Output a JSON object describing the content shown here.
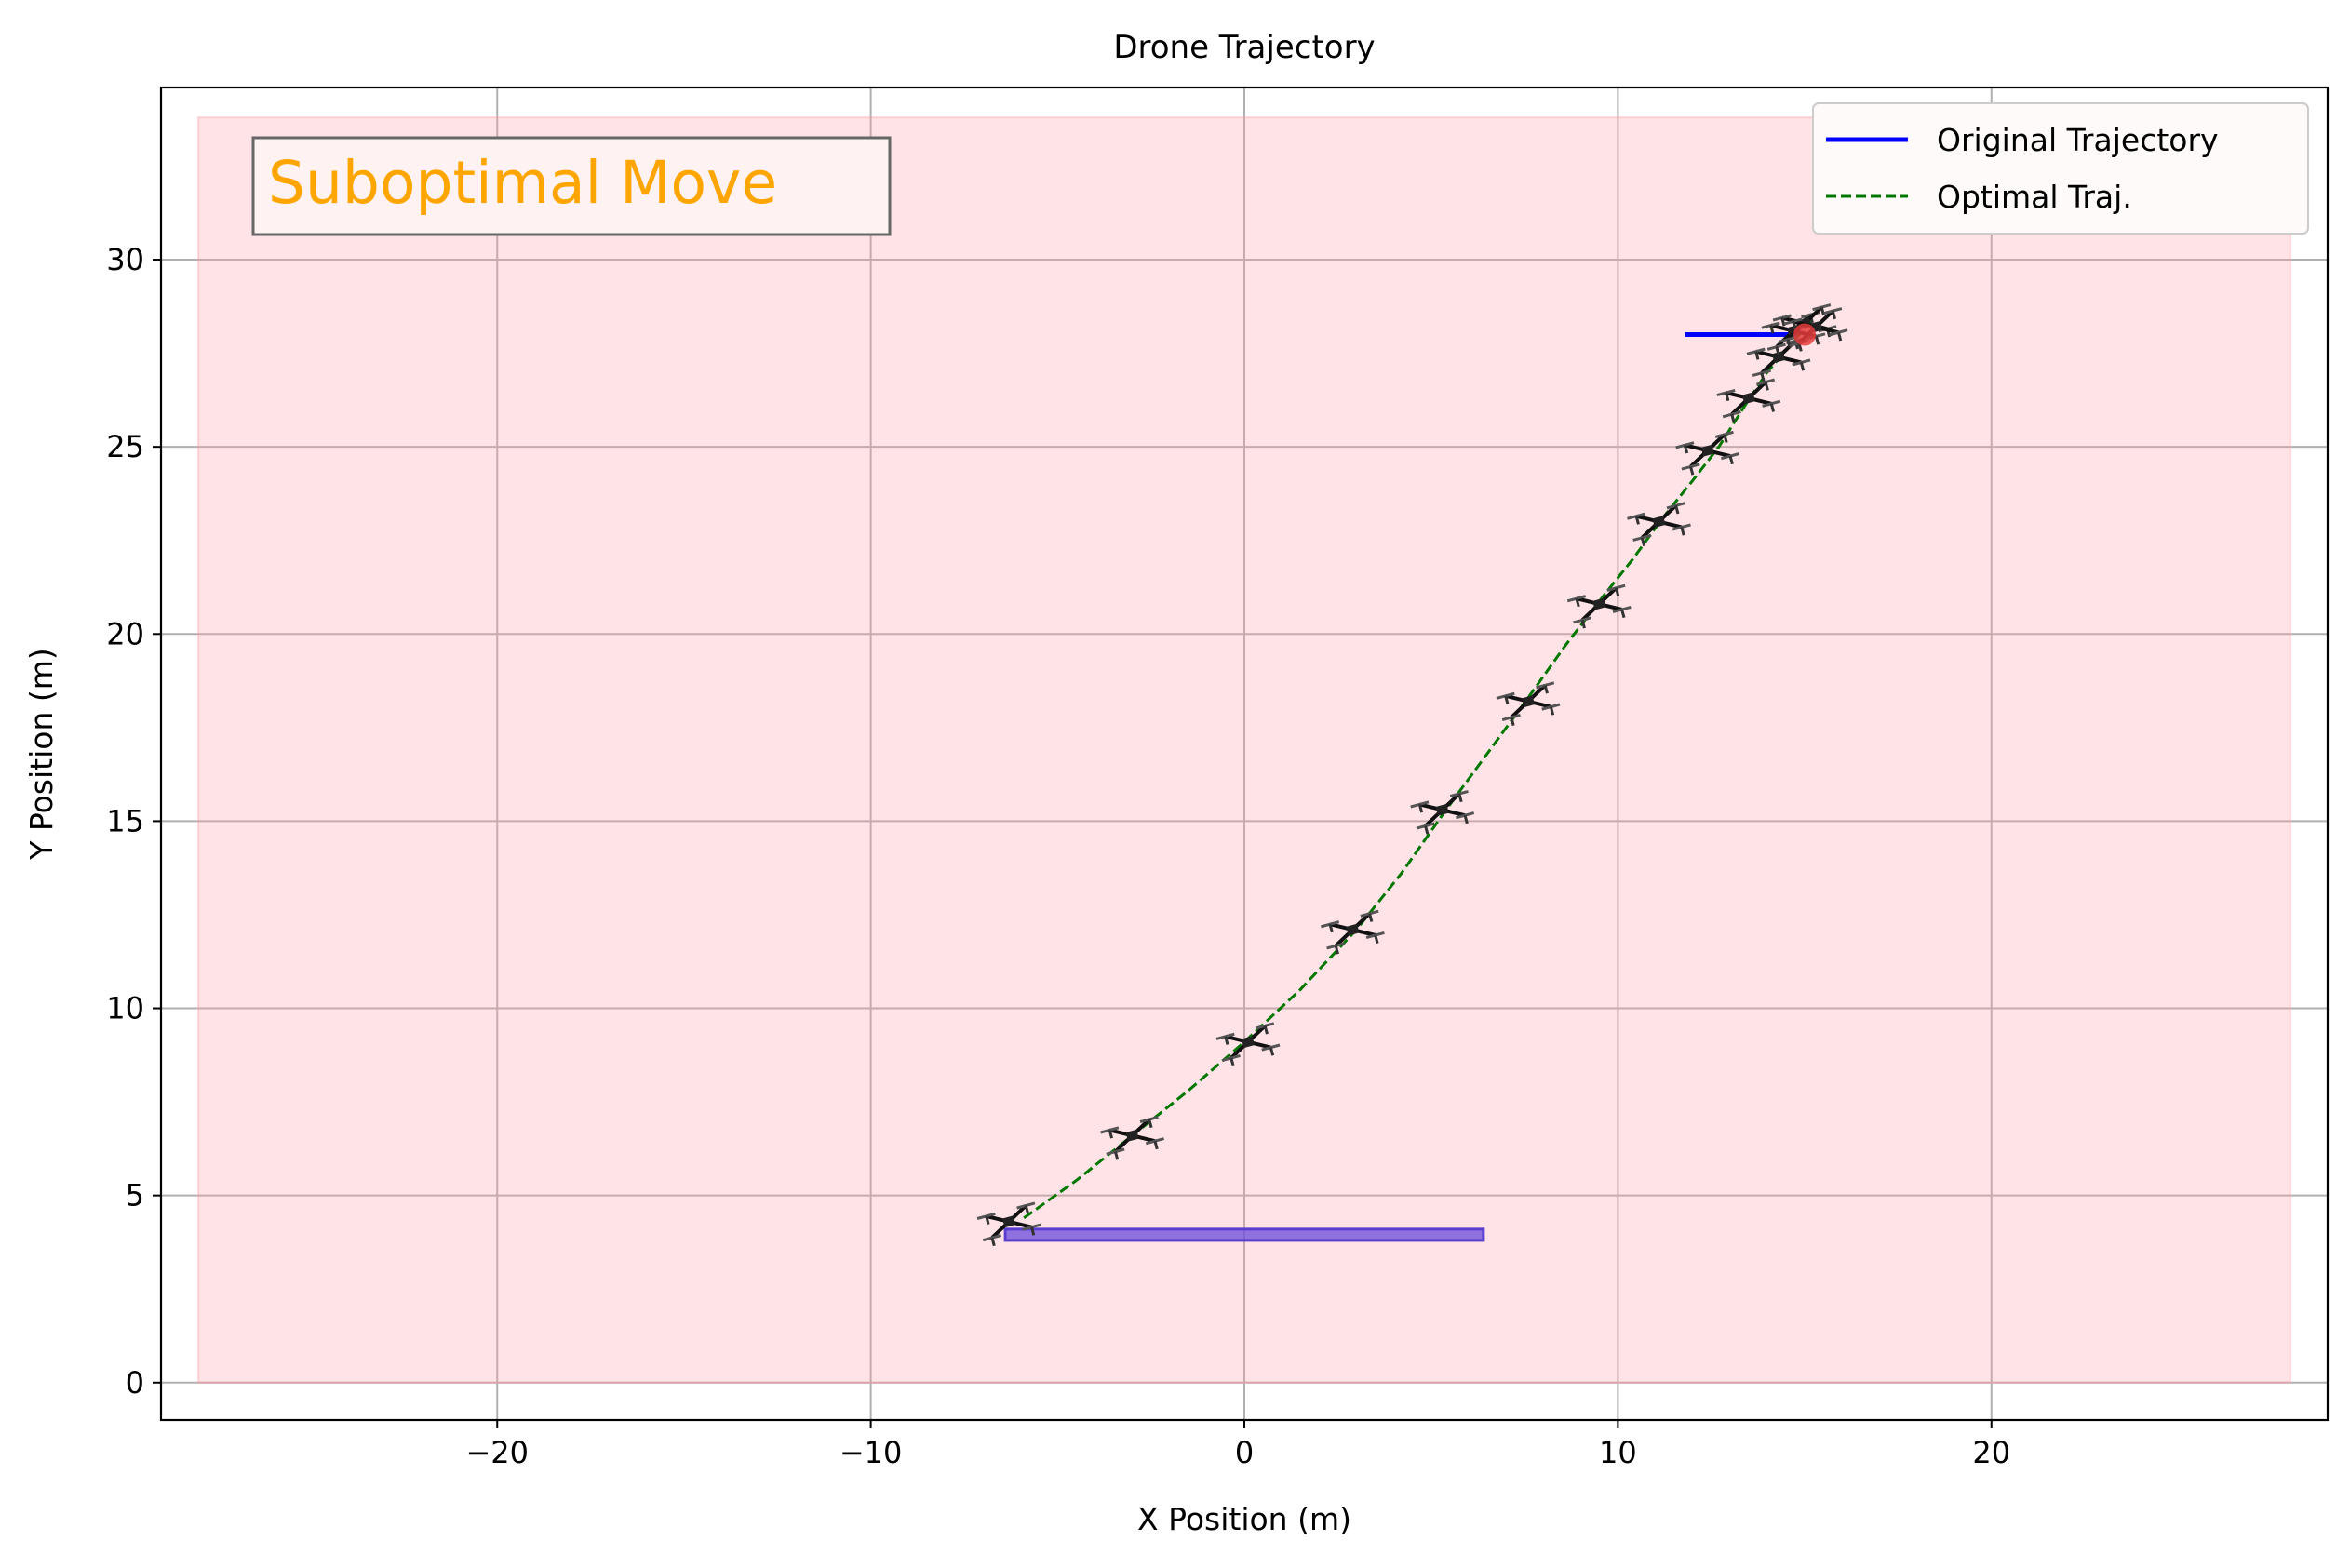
{
  "chart_data": {
    "type": "line",
    "title": "Drone Trajectory",
    "xlabel": "X Position (m)",
    "ylabel": "Y Position (m)",
    "xlim": [
      -29,
      29
    ],
    "ylim": [
      -1,
      34.6
    ],
    "xticks": [
      -20,
      -10,
      0,
      10,
      20
    ],
    "yticks": [
      0,
      5,
      10,
      15,
      20,
      25,
      30
    ],
    "xtick_labels": [
      "−20",
      "−10",
      "0",
      "10",
      "20"
    ],
    "ytick_labels": [
      "0",
      "5",
      "10",
      "15",
      "20",
      "25",
      "30"
    ],
    "grid": true,
    "legend_position": "upper right",
    "annotation": {
      "text": "Suboptimal Move",
      "color": "#FFA500"
    },
    "shaded_region": {
      "x": [
        -28,
        28
      ],
      "y": [
        0,
        33.8
      ],
      "color": "#ff9aa6"
    },
    "start_zone": {
      "x": [
        -6.4,
        6.4
      ],
      "y": [
        3.8,
        4.1
      ],
      "color": "#6a4bdc"
    },
    "goal_marker": {
      "x": 15,
      "y": 28,
      "color": "#e53b3b"
    },
    "series": [
      {
        "name": "Original Trajectory",
        "style": "solid",
        "color": "#0000ff",
        "x": [
          11.8,
          14.8
        ],
        "y": [
          28.0,
          28.0
        ]
      },
      {
        "name": "Optimal Traj.",
        "style": "dashed",
        "color": "#007800",
        "x": [
          -5.9,
          -4.5,
          -3.0,
          -1.5,
          0.0,
          1.5,
          3.0,
          4.2,
          5.4,
          6.5,
          7.6,
          8.6,
          9.6,
          10.4,
          11.2,
          12.0,
          12.7,
          13.4,
          14.0,
          14.6,
          15.2
        ],
        "y": [
          4.4,
          5.4,
          6.6,
          7.8,
          9.1,
          10.5,
          12.1,
          13.6,
          15.3,
          16.8,
          18.3,
          19.7,
          21.0,
          22.0,
          23.1,
          24.1,
          25.0,
          26.1,
          27.0,
          27.7,
          28.4
        ]
      }
    ],
    "drone_positions": [
      {
        "x": -6.3,
        "y": 4.3
      },
      {
        "x": -3.0,
        "y": 6.6
      },
      {
        "x": 0.1,
        "y": 9.1
      },
      {
        "x": 2.9,
        "y": 12.1
      },
      {
        "x": 5.3,
        "y": 15.3
      },
      {
        "x": 7.6,
        "y": 18.2
      },
      {
        "x": 9.5,
        "y": 20.8
      },
      {
        "x": 11.1,
        "y": 23.0
      },
      {
        "x": 12.4,
        "y": 24.9
      },
      {
        "x": 13.5,
        "y": 26.3
      },
      {
        "x": 14.3,
        "y": 27.4
      },
      {
        "x": 14.7,
        "y": 28.1
      },
      {
        "x": 15.0,
        "y": 28.3
      },
      {
        "x": 15.3,
        "y": 28.2
      }
    ]
  }
}
